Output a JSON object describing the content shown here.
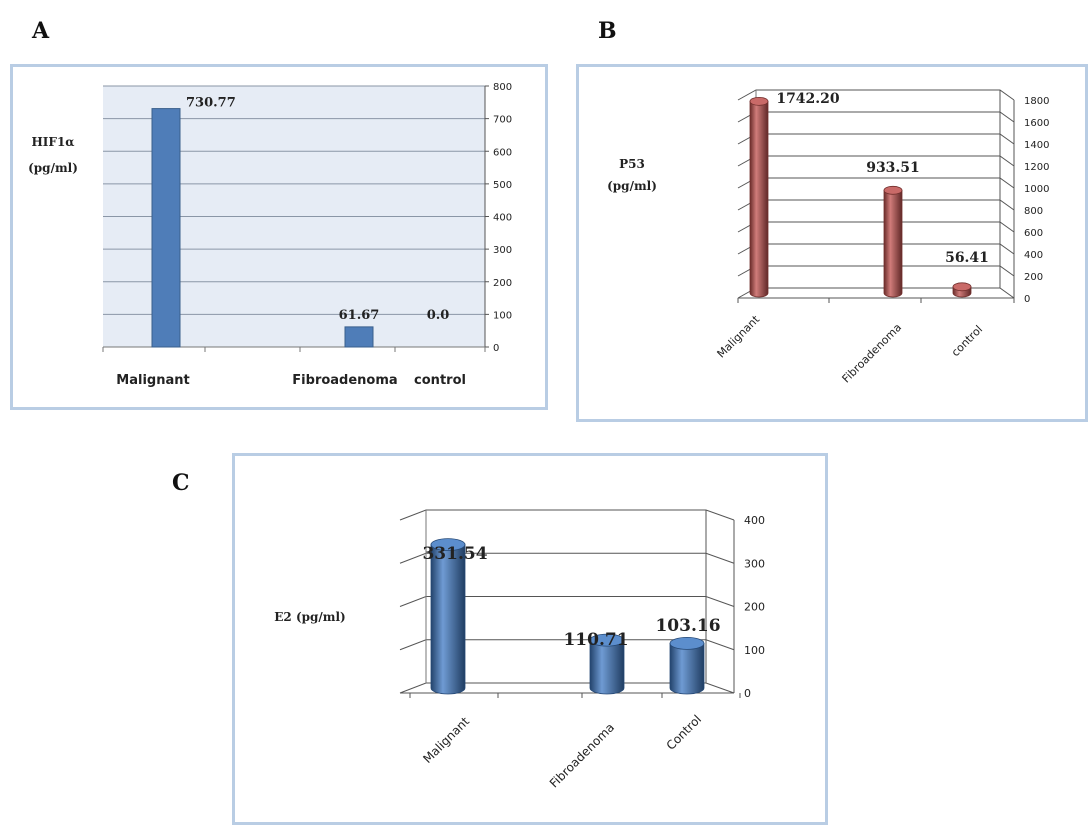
{
  "panels": {
    "a": "A",
    "b": "B",
    "c": "C"
  },
  "chart_data": [
    {
      "id": "A",
      "type": "bar",
      "categories": [
        "Malignant",
        "Fibroadenoma",
        "control"
      ],
      "values": [
        730.77,
        61.67,
        0.0
      ],
      "data_labels": [
        "730.77",
        "61.67",
        "0.0"
      ],
      "ylabel": "HIF1α (pg/ml)",
      "ylabel_lines": [
        "HIF1α",
        "(pg/ml)"
      ],
      "ylim": [
        0,
        800
      ],
      "yticks": [
        0,
        100,
        200,
        300,
        400,
        500,
        600,
        700,
        800
      ],
      "y_axis_side": "right",
      "grid": true,
      "color": "#4f7db8",
      "plot_bg": "#e6ecf5"
    },
    {
      "id": "B",
      "type": "bar",
      "style": "3d-cylinder",
      "categories": [
        "Malignant",
        "Fibroadenoma",
        "control"
      ],
      "values": [
        1742.2,
        933.51,
        56.41
      ],
      "data_labels": [
        "1742.20",
        "933.51",
        "56.41"
      ],
      "ylabel": "P53 (pg/ml)",
      "ylabel_lines": [
        "P53",
        "(pg/ml)"
      ],
      "ylim": [
        0,
        1800
      ],
      "yticks": [
        0,
        200,
        400,
        600,
        800,
        1000,
        1200,
        1400,
        1600,
        1800
      ],
      "y_axis_side": "right",
      "grid": true,
      "color": "#c0504d"
    },
    {
      "id": "C",
      "type": "bar",
      "style": "3d-cylinder",
      "categories": [
        "Malignant",
        "Fibroadenoma",
        "Control"
      ],
      "values": [
        331.54,
        110.71,
        103.16
      ],
      "data_labels": [
        "331.54",
        "110.71",
        "103.16"
      ],
      "ylabel": "E2 (pg/ml)",
      "ylabel_lines": [
        "E2 (pg/ml)"
      ],
      "ylim": [
        0,
        400
      ],
      "yticks": [
        0,
        100,
        200,
        300,
        400
      ],
      "y_axis_side": "right",
      "grid": true,
      "color": "#3f7ac4"
    }
  ]
}
